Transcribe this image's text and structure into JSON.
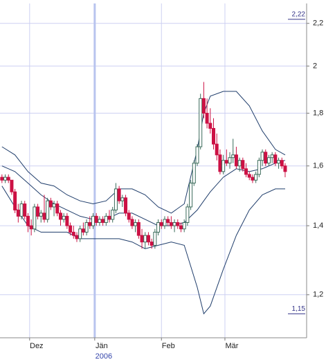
{
  "chart_data": {
    "type": "candlestick",
    "log_y": true,
    "grid": true,
    "up_color": "#3a6b5a",
    "down_color": "#cc1144",
    "grid_color": "#cdd0f2",
    "year_line_color": "#b8c4ee",
    "ylim": [
      1.09,
      2.3
    ],
    "yticks": [
      {
        "value": 1.2,
        "label": "1,2"
      },
      {
        "value": 1.4,
        "label": "1,4"
      },
      {
        "value": 1.6,
        "label": "1,6"
      },
      {
        "value": 1.8,
        "label": "1,8"
      },
      2,
      {
        "value": 2.2,
        "label": "2,2"
      }
    ],
    "xlim": [
      -0.6,
      93.6
    ],
    "xticks": [
      {
        "value": 8.5,
        "label": "Dez"
      },
      {
        "value": 28.5,
        "label": "Jän"
      },
      {
        "value": 49,
        "label": "Feb"
      },
      {
        "value": 68.5,
        "label": "Mär"
      }
    ],
    "year_label": {
      "value": 28.5,
      "label": "2006"
    },
    "annotations": [
      {
        "value": 2.22,
        "label": "2,22"
      },
      {
        "value": 1.15,
        "label": "1,15"
      }
    ],
    "ohlc": [
      [
        1.56,
        1.57,
        1.54,
        1.55
      ],
      [
        1.55,
        1.57,
        1.54,
        1.56
      ],
      [
        1.56,
        1.57,
        1.54,
        1.55
      ],
      [
        1.55,
        1.55,
        1.5,
        1.51
      ],
      [
        1.51,
        1.52,
        1.44,
        1.45
      ],
      [
        1.45,
        1.47,
        1.41,
        1.43
      ],
      [
        1.43,
        1.48,
        1.42,
        1.47
      ],
      [
        1.47,
        1.48,
        1.42,
        1.43
      ],
      [
        1.43,
        1.44,
        1.38,
        1.4
      ],
      [
        1.4,
        1.42,
        1.37,
        1.39
      ],
      [
        1.39,
        1.47,
        1.38,
        1.46
      ],
      [
        1.46,
        1.47,
        1.42,
        1.43
      ],
      [
        1.43,
        1.45,
        1.41,
        1.44
      ],
      [
        1.44,
        1.5,
        1.41,
        1.42
      ],
      [
        1.42,
        1.49,
        1.41,
        1.48
      ],
      [
        1.48,
        1.49,
        1.45,
        1.46
      ],
      [
        1.46,
        1.48,
        1.43,
        1.47
      ],
      [
        1.47,
        1.48,
        1.43,
        1.44
      ],
      [
        1.44,
        1.45,
        1.4,
        1.42
      ],
      [
        1.42,
        1.44,
        1.41,
        1.43
      ],
      [
        1.43,
        1.44,
        1.39,
        1.4
      ],
      [
        1.4,
        1.41,
        1.37,
        1.38
      ],
      [
        1.38,
        1.4,
        1.36,
        1.37
      ],
      [
        1.37,
        1.38,
        1.35,
        1.36
      ],
      [
        1.36,
        1.4,
        1.35,
        1.39
      ],
      [
        1.39,
        1.41,
        1.37,
        1.38
      ],
      [
        1.38,
        1.42,
        1.37,
        1.41
      ],
      [
        1.41,
        1.43,
        1.39,
        1.4
      ],
      [
        1.4,
        1.44,
        1.39,
        1.43
      ],
      [
        1.43,
        1.44,
        1.4,
        1.41
      ],
      [
        1.41,
        1.43,
        1.4,
        1.42
      ],
      [
        1.42,
        1.43,
        1.4,
        1.41
      ],
      [
        1.41,
        1.44,
        1.4,
        1.43
      ],
      [
        1.43,
        1.45,
        1.41,
        1.42
      ],
      [
        1.42,
        1.46,
        1.41,
        1.45
      ],
      [
        1.45,
        1.54,
        1.44,
        1.52
      ],
      [
        1.52,
        1.53,
        1.47,
        1.48
      ],
      [
        1.48,
        1.5,
        1.46,
        1.49
      ],
      [
        1.49,
        1.5,
        1.43,
        1.44
      ],
      [
        1.44,
        1.45,
        1.41,
        1.42
      ],
      [
        1.42,
        1.43,
        1.39,
        1.4
      ],
      [
        1.4,
        1.42,
        1.38,
        1.41
      ],
      [
        1.41,
        1.42,
        1.36,
        1.37
      ],
      [
        1.37,
        1.39,
        1.33,
        1.35
      ],
      [
        1.35,
        1.38,
        1.33,
        1.37
      ],
      [
        1.37,
        1.38,
        1.34,
        1.35
      ],
      [
        1.35,
        1.36,
        1.33,
        1.34
      ],
      [
        1.34,
        1.39,
        1.33,
        1.38
      ],
      [
        1.38,
        1.42,
        1.37,
        1.41
      ],
      [
        1.41,
        1.42,
        1.39,
        1.4
      ],
      [
        1.4,
        1.43,
        1.39,
        1.42
      ],
      [
        1.42,
        1.43,
        1.4,
        1.41
      ],
      [
        1.41,
        1.43,
        1.39,
        1.4
      ],
      [
        1.4,
        1.42,
        1.38,
        1.41
      ],
      [
        1.41,
        1.42,
        1.39,
        1.4
      ],
      [
        1.4,
        1.41,
        1.38,
        1.39
      ],
      [
        1.39,
        1.42,
        1.38,
        1.41
      ],
      [
        1.41,
        1.47,
        1.4,
        1.46
      ],
      [
        1.46,
        1.55,
        1.45,
        1.54
      ],
      [
        1.54,
        1.62,
        1.53,
        1.61
      ],
      [
        1.61,
        1.68,
        1.6,
        1.67
      ],
      [
        1.67,
        1.88,
        1.66,
        1.86
      ],
      [
        1.86,
        1.93,
        1.78,
        1.8
      ],
      [
        1.8,
        1.86,
        1.74,
        1.76
      ],
      [
        1.76,
        1.82,
        1.72,
        1.74
      ],
      [
        1.74,
        1.78,
        1.66,
        1.68
      ],
      [
        1.68,
        1.72,
        1.62,
        1.64
      ],
      [
        1.64,
        1.66,
        1.57,
        1.58
      ],
      [
        1.58,
        1.64,
        1.57,
        1.62
      ],
      [
        1.62,
        1.66,
        1.6,
        1.61
      ],
      [
        1.61,
        1.65,
        1.59,
        1.63
      ],
      [
        1.63,
        1.7,
        1.61,
        1.64
      ],
      [
        1.64,
        1.67,
        1.59,
        1.6
      ],
      [
        1.6,
        1.63,
        1.58,
        1.62
      ],
      [
        1.62,
        1.63,
        1.58,
        1.59
      ],
      [
        1.59,
        1.61,
        1.56,
        1.57
      ],
      [
        1.57,
        1.58,
        1.55,
        1.56
      ],
      [
        1.56,
        1.57,
        1.54,
        1.55
      ],
      [
        1.55,
        1.58,
        1.54,
        1.57
      ],
      [
        1.57,
        1.63,
        1.56,
        1.62
      ],
      [
        1.62,
        1.66,
        1.6,
        1.65
      ],
      [
        1.65,
        1.66,
        1.6,
        1.61
      ],
      [
        1.61,
        1.64,
        1.6,
        1.63
      ],
      [
        1.63,
        1.65,
        1.61,
        1.64
      ],
      [
        1.64,
        1.65,
        1.6,
        1.61
      ],
      [
        1.61,
        1.63,
        1.59,
        1.62
      ],
      [
        1.62,
        1.63,
        1.59,
        1.6
      ],
      [
        1.6,
        1.61,
        1.56,
        1.58
      ]
    ],
    "bands": {
      "color": "#1f3d6b",
      "x": [
        0,
        4,
        8,
        12,
        16,
        20,
        24,
        28,
        32,
        36,
        40,
        44,
        48,
        52,
        56,
        60,
        62,
        64,
        68,
        72,
        76,
        80,
        84,
        87
      ],
      "series": [
        {
          "values": [
            1.67,
            1.64,
            1.58,
            1.54,
            1.53,
            1.5,
            1.48,
            1.47,
            1.48,
            1.52,
            1.52,
            1.5,
            1.46,
            1.44,
            1.47,
            1.66,
            1.8,
            1.87,
            1.89,
            1.89,
            1.83,
            1.73,
            1.66,
            1.64
          ]
        },
        {
          "values": [
            1.6,
            1.58,
            1.54,
            1.5,
            1.47,
            1.45,
            1.43,
            1.42,
            1.42,
            1.44,
            1.44,
            1.42,
            1.4,
            1.4,
            1.41,
            1.45,
            1.48,
            1.51,
            1.56,
            1.59,
            1.58,
            1.59,
            1.61,
            1.62
          ]
        },
        {
          "values": [
            1.53,
            1.46,
            1.4,
            1.38,
            1.38,
            1.38,
            1.36,
            1.36,
            1.36,
            1.36,
            1.35,
            1.33,
            1.34,
            1.35,
            1.34,
            1.22,
            1.15,
            1.17,
            1.27,
            1.37,
            1.45,
            1.5,
            1.52,
            1.52
          ]
        }
      ]
    }
  }
}
